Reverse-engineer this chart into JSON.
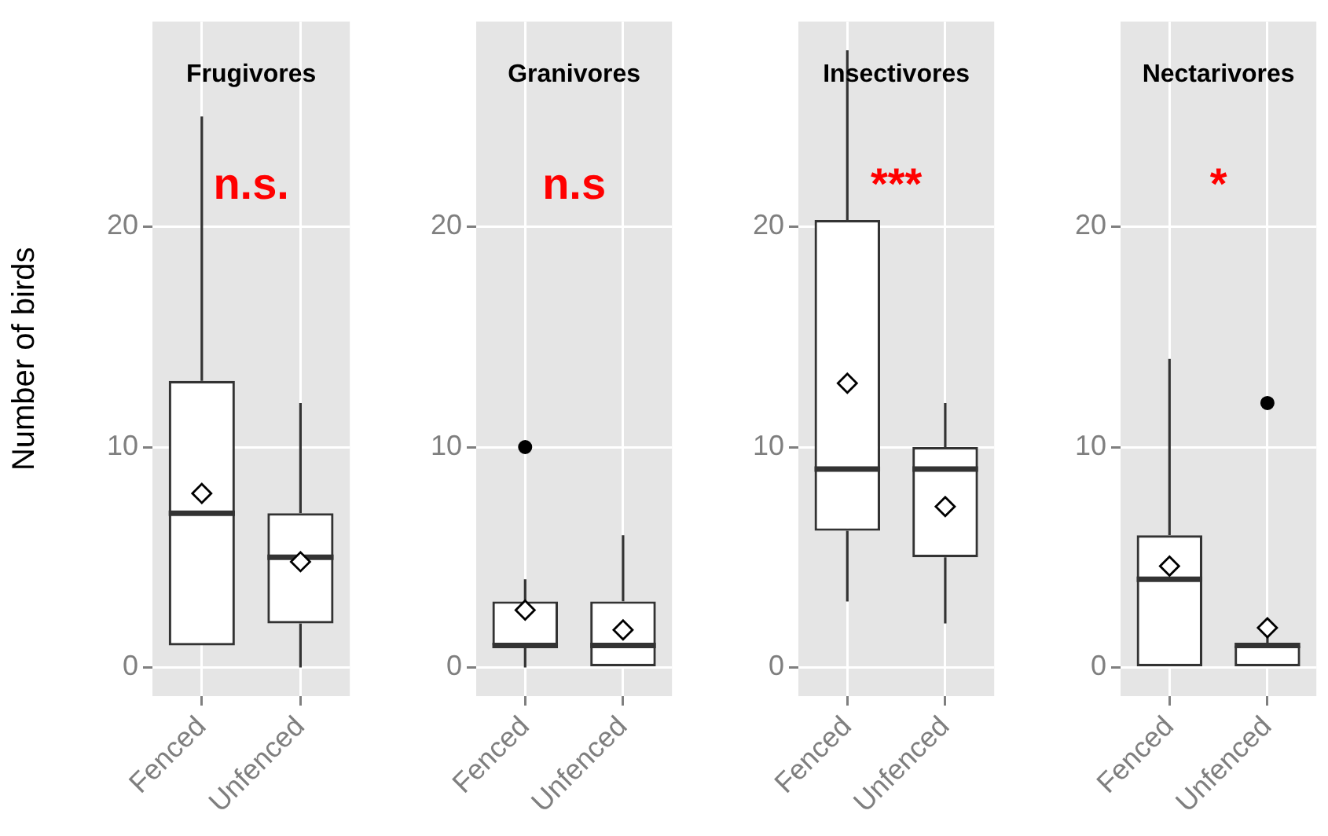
{
  "chart_data": [
    {
      "type": "box",
      "title": "Frugivores",
      "ylabel": "Number of birds",
      "categories": [
        "Fenced",
        "Unfenced"
      ],
      "boxes": [
        {
          "low": 1,
          "q1": 1,
          "median": 7,
          "q3": 13,
          "high": 25,
          "mean": 7.9
        },
        {
          "low": 0,
          "q1": 2,
          "median": 5,
          "q3": 7,
          "high": 12,
          "mean": 4.8
        }
      ],
      "ylim": [
        -1.3,
        29.3
      ],
      "yticks": [
        0,
        10,
        20
      ],
      "grid": true,
      "annotations": [
        "n.s."
      ]
    },
    {
      "type": "box",
      "title": "Granivores",
      "categories": [
        "Fenced",
        "Unfenced"
      ],
      "boxes": [
        {
          "low": 0,
          "q1": 1,
          "median": 1,
          "q3": 3,
          "high": 4,
          "mean": 2.6,
          "outliers": [
            10
          ]
        },
        {
          "low": 0,
          "q1": 0,
          "median": 1,
          "q3": 3,
          "high": 6,
          "mean": 1.7
        }
      ],
      "ylim": [
        -1.3,
        29.3
      ],
      "yticks": [
        0,
        10,
        20
      ],
      "grid": true,
      "annotations": [
        "n.s"
      ]
    },
    {
      "type": "box",
      "title": "Insectivores",
      "categories": [
        "Fenced",
        "Unfenced"
      ],
      "boxes": [
        {
          "low": 3,
          "q1": 6.2,
          "median": 9,
          "q3": 20.3,
          "high": 28,
          "mean": 12.9
        },
        {
          "low": 2,
          "q1": 5,
          "median": 9,
          "q3": 10,
          "high": 12,
          "mean": 7.3
        }
      ],
      "ylim": [
        -1.3,
        29.3
      ],
      "yticks": [
        0,
        10,
        20
      ],
      "grid": true,
      "annotations": [
        "***"
      ]
    },
    {
      "type": "box",
      "title": "Nectarivores",
      "categories": [
        "Fenced",
        "Unfenced"
      ],
      "boxes": [
        {
          "low": 0,
          "q1": 0,
          "median": 4,
          "q3": 6,
          "high": 14,
          "mean": 4.6
        },
        {
          "low": 0,
          "q1": 0,
          "median": 1,
          "q3": 1,
          "high": 2,
          "mean": 1.8,
          "outliers": [
            12
          ]
        }
      ],
      "ylim": [
        -1.3,
        29.3
      ],
      "yticks": [
        0,
        10,
        20
      ],
      "grid": true,
      "annotations": [
        "*"
      ]
    }
  ]
}
